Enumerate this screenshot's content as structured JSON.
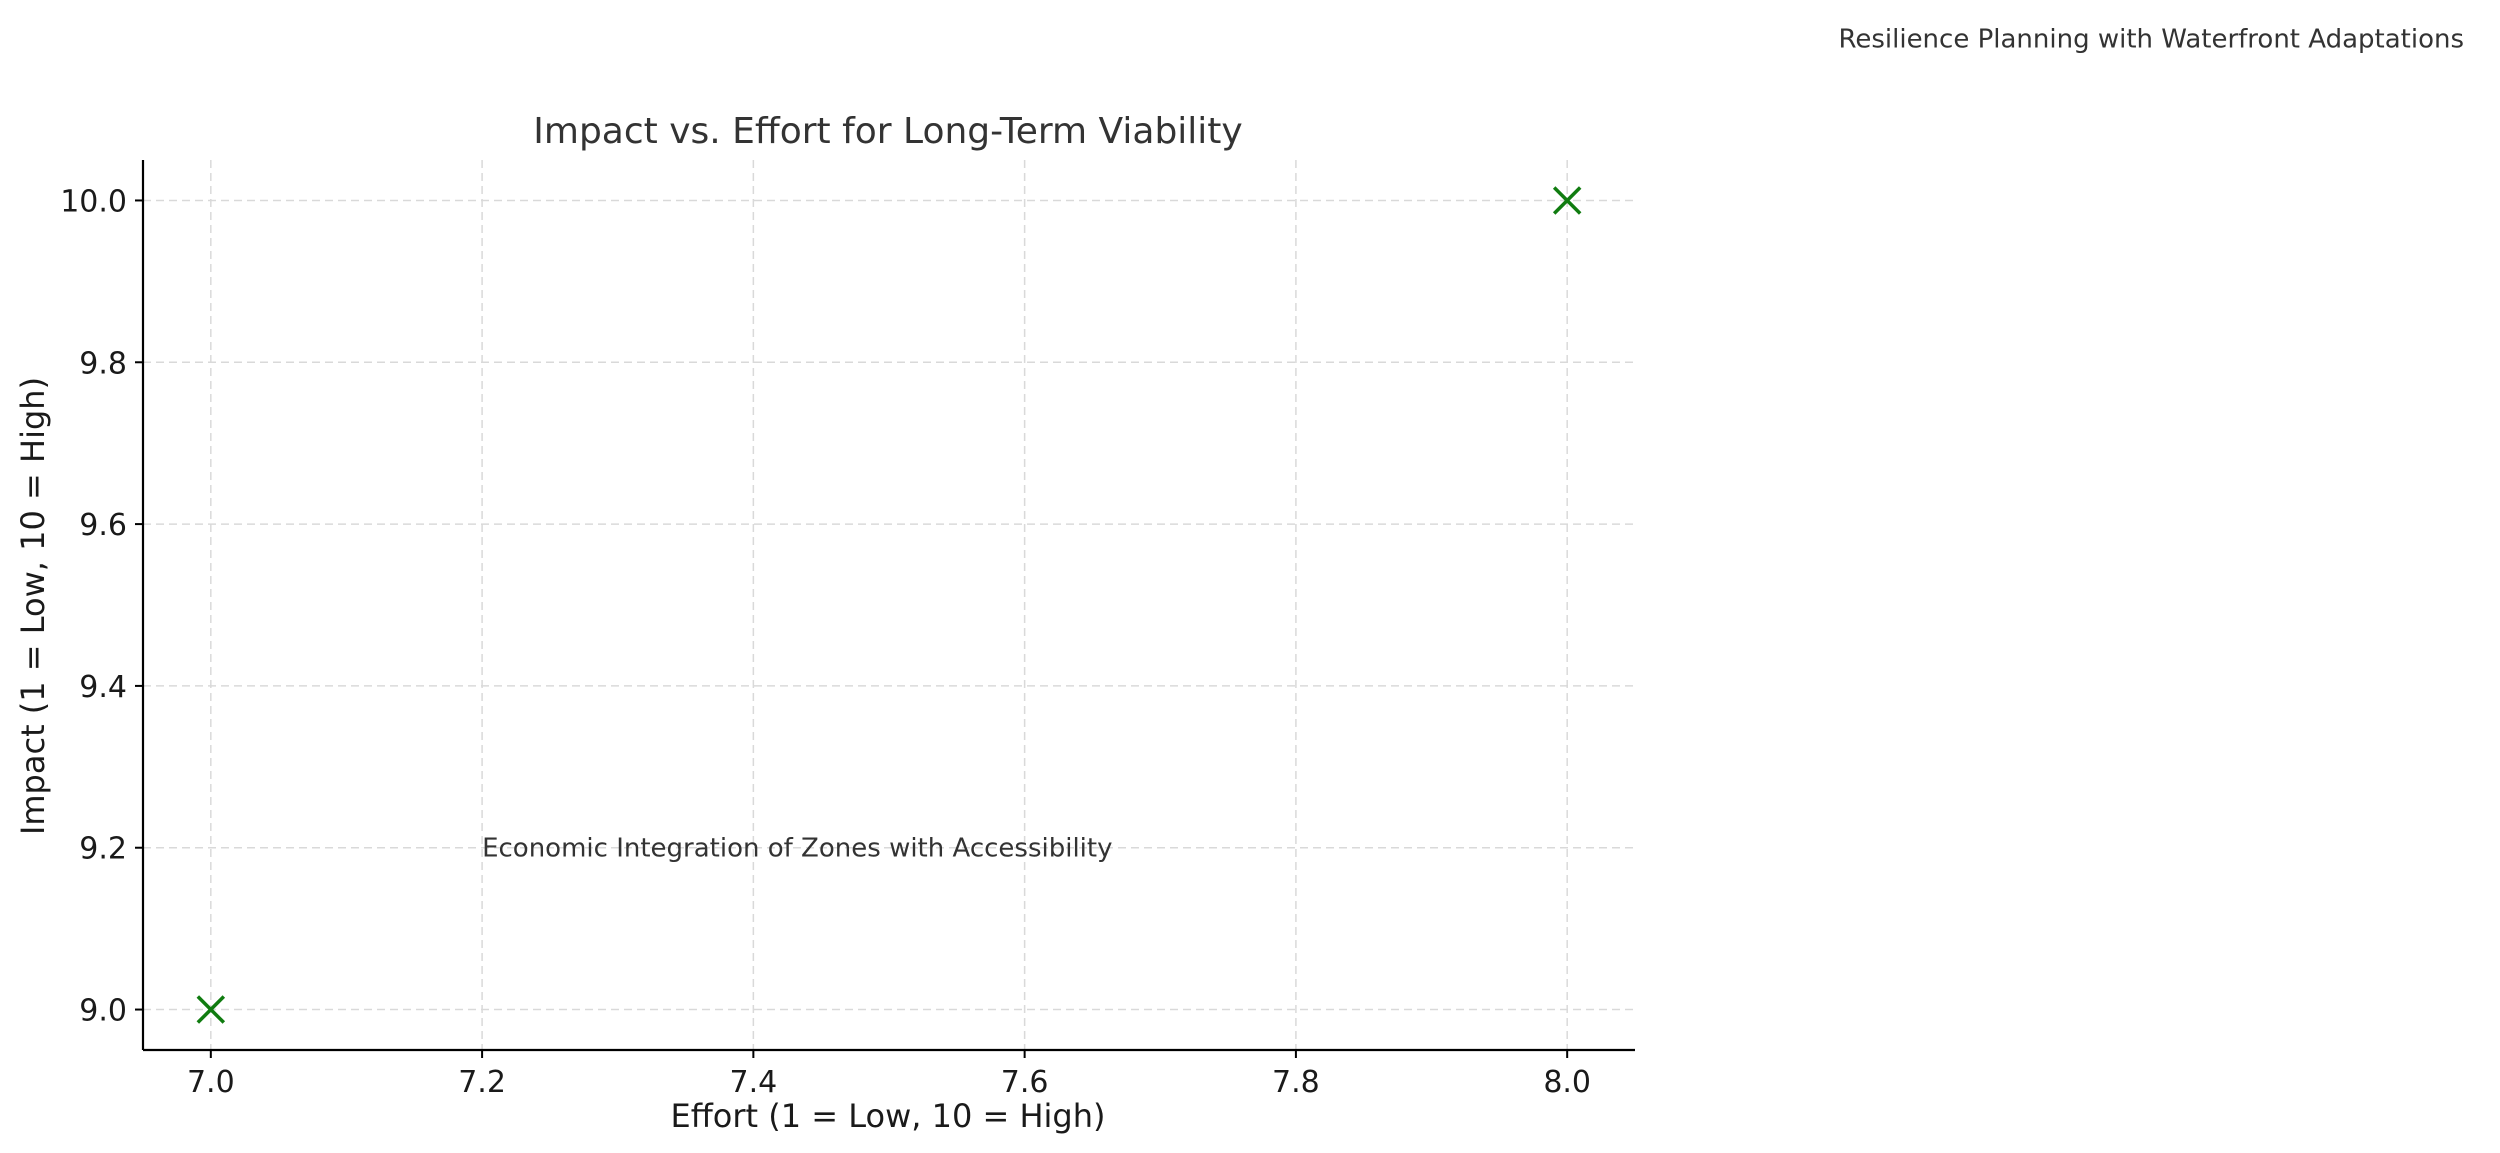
{
  "chart_data": {
    "type": "scatter",
    "title": "Impact vs. Effort for Long-Term Viability",
    "xlabel": "Effort (1 = Low, 10 = High)",
    "ylabel": "Impact (1 = Low, 10 = High)",
    "xlim": [
      6.95,
      8.05
    ],
    "ylim": [
      8.95,
      10.05
    ],
    "xticks": [
      7.0,
      7.2,
      7.4,
      7.6,
      7.8,
      8.0
    ],
    "yticks": [
      9.0,
      9.2,
      9.4,
      9.6,
      9.8,
      10.0
    ],
    "xtick_labels": [
      "7.0",
      "7.2",
      "7.4",
      "7.6",
      "7.8",
      "8.0"
    ],
    "ytick_labels": [
      "9.0",
      "9.2",
      "9.4",
      "9.6",
      "9.8",
      "10.0"
    ],
    "grid": true,
    "marker": "x",
    "marker_color": "#107c10",
    "points": [
      {
        "x": 7.0,
        "y": 9.0
      },
      {
        "x": 8.0,
        "y": 10.0
      }
    ],
    "annotations": [
      {
        "text": "Economic Integration of Zones with Accessibility",
        "x": 7.2,
        "y": 9.2
      },
      {
        "text": "Resilience Planning with Waterfront Adaptations",
        "x": 8.2,
        "y": 10.2
      }
    ]
  }
}
